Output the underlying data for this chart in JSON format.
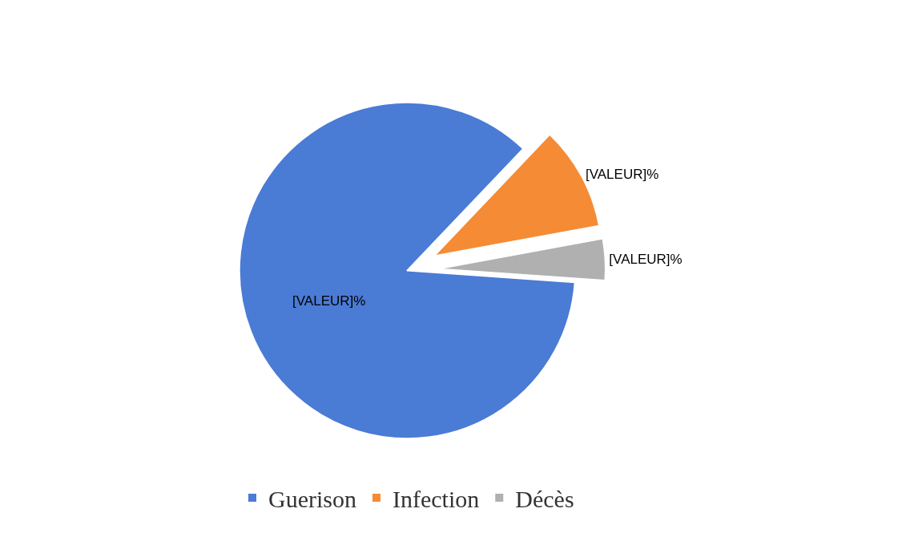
{
  "chart_data": {
    "type": "pie",
    "categories": [
      "Guerison",
      "Infection",
      "Décès"
    ],
    "values": [
      86,
      10,
      4
    ],
    "colors": [
      "#4a7bd5",
      "#f58b35",
      "#b0b0b0"
    ],
    "value_labels": [
      "[VALEUR]%",
      "[VALEUR]%",
      "[VALEUR]%"
    ],
    "legend": "bottom"
  }
}
